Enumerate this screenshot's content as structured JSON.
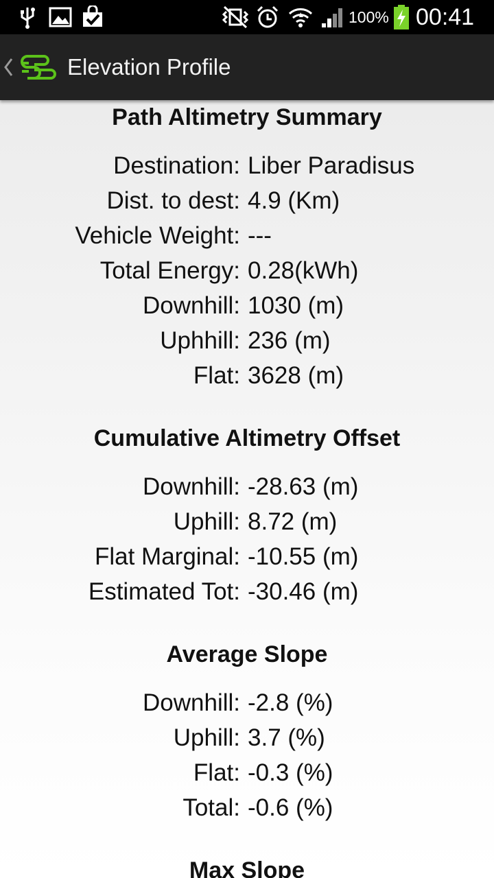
{
  "status_bar": {
    "battery_percent": "100%",
    "time": "00:41",
    "icons": [
      "usb-icon",
      "image-icon",
      "store-icon",
      "mute-vibrate-icon",
      "alarm-icon",
      "wifi-icon",
      "signal-icon",
      "battery-charging-icon"
    ]
  },
  "action_bar": {
    "title": "Elevation Profile",
    "accent_color": "#5cc21a"
  },
  "summary": {
    "title": "Path Altimetry Summary",
    "rows": [
      {
        "label": "Destination:",
        "value": "Liber Paradisus"
      },
      {
        "label": "Dist. to dest:",
        "value": "4.9 (Km)"
      },
      {
        "label": "Vehicle Weight:",
        "value": "---"
      },
      {
        "label": "Total Energy:",
        "value": "0.28(kWh)"
      },
      {
        "label": "Downhill:",
        "value": "1030 (m)"
      },
      {
        "label": "Uphhill:",
        "value": "236 (m)"
      },
      {
        "label": "Flat:",
        "value": "3628 (m)"
      }
    ]
  },
  "offset": {
    "title": "Cumulative Altimetry Offset",
    "rows": [
      {
        "label": "Downhill:",
        "value": "-28.63 (m)"
      },
      {
        "label": "Uphill:",
        "value": "8.72 (m)"
      },
      {
        "label": "Flat Marginal:",
        "value": "-10.55 (m)"
      },
      {
        "label": "Estimated Tot:",
        "value": "-30.46 (m)"
      }
    ]
  },
  "avg_slope": {
    "title": "Average Slope",
    "rows": [
      {
        "label": "Downhill:",
        "value": "-2.8 (%)"
      },
      {
        "label": "Uphill:",
        "value": "3.7 (%)"
      },
      {
        "label": "Flat:",
        "value": "-0.3 (%)"
      },
      {
        "label": "Total:",
        "value": "-0.6 (%)"
      }
    ]
  },
  "max_slope": {
    "title": "Max Slope"
  }
}
